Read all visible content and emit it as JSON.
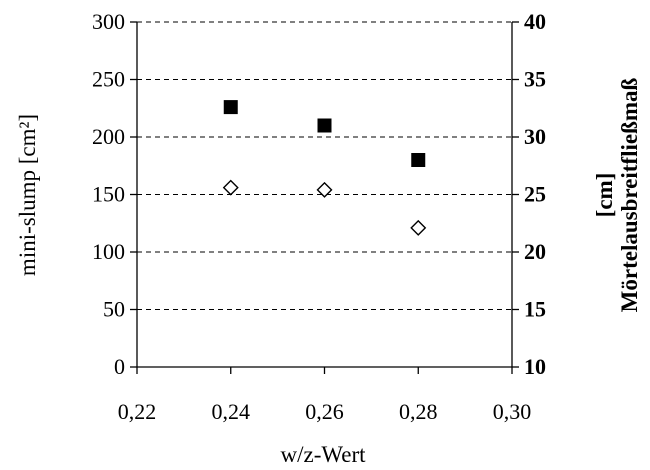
{
  "chart_data": {
    "type": "scatter",
    "x_ticks": [
      "0,22",
      "0,24",
      "0,26",
      "0,28",
      "0,30"
    ],
    "x_values": [
      0.22,
      0.24,
      0.26,
      0.28,
      0.3
    ],
    "xlim": [
      0.22,
      0.3
    ],
    "xlabel": "w/z-Wert",
    "ylabel": "mini-slump [cm²]",
    "ylim": [
      0,
      300
    ],
    "y_ticks": [
      "0",
      "50",
      "100",
      "150",
      "200",
      "250",
      "300"
    ],
    "y2label_line1": "Mörtelausbreitfließmaß",
    "y2label_line2": "[cm]",
    "y2lim": [
      10,
      40
    ],
    "y2_ticks": [
      "10",
      "15",
      "20",
      "25",
      "30",
      "35",
      "40"
    ],
    "grid": "horizontal dashed",
    "series": [
      {
        "marker": "filled-square",
        "color": "#000000",
        "x": [
          0.24,
          0.26,
          0.28
        ],
        "y": [
          226,
          210,
          180
        ]
      },
      {
        "marker": "open-diamond",
        "color": "#000000",
        "x": [
          0.24,
          0.26,
          0.28
        ],
        "y": [
          156,
          154,
          121
        ]
      }
    ]
  }
}
